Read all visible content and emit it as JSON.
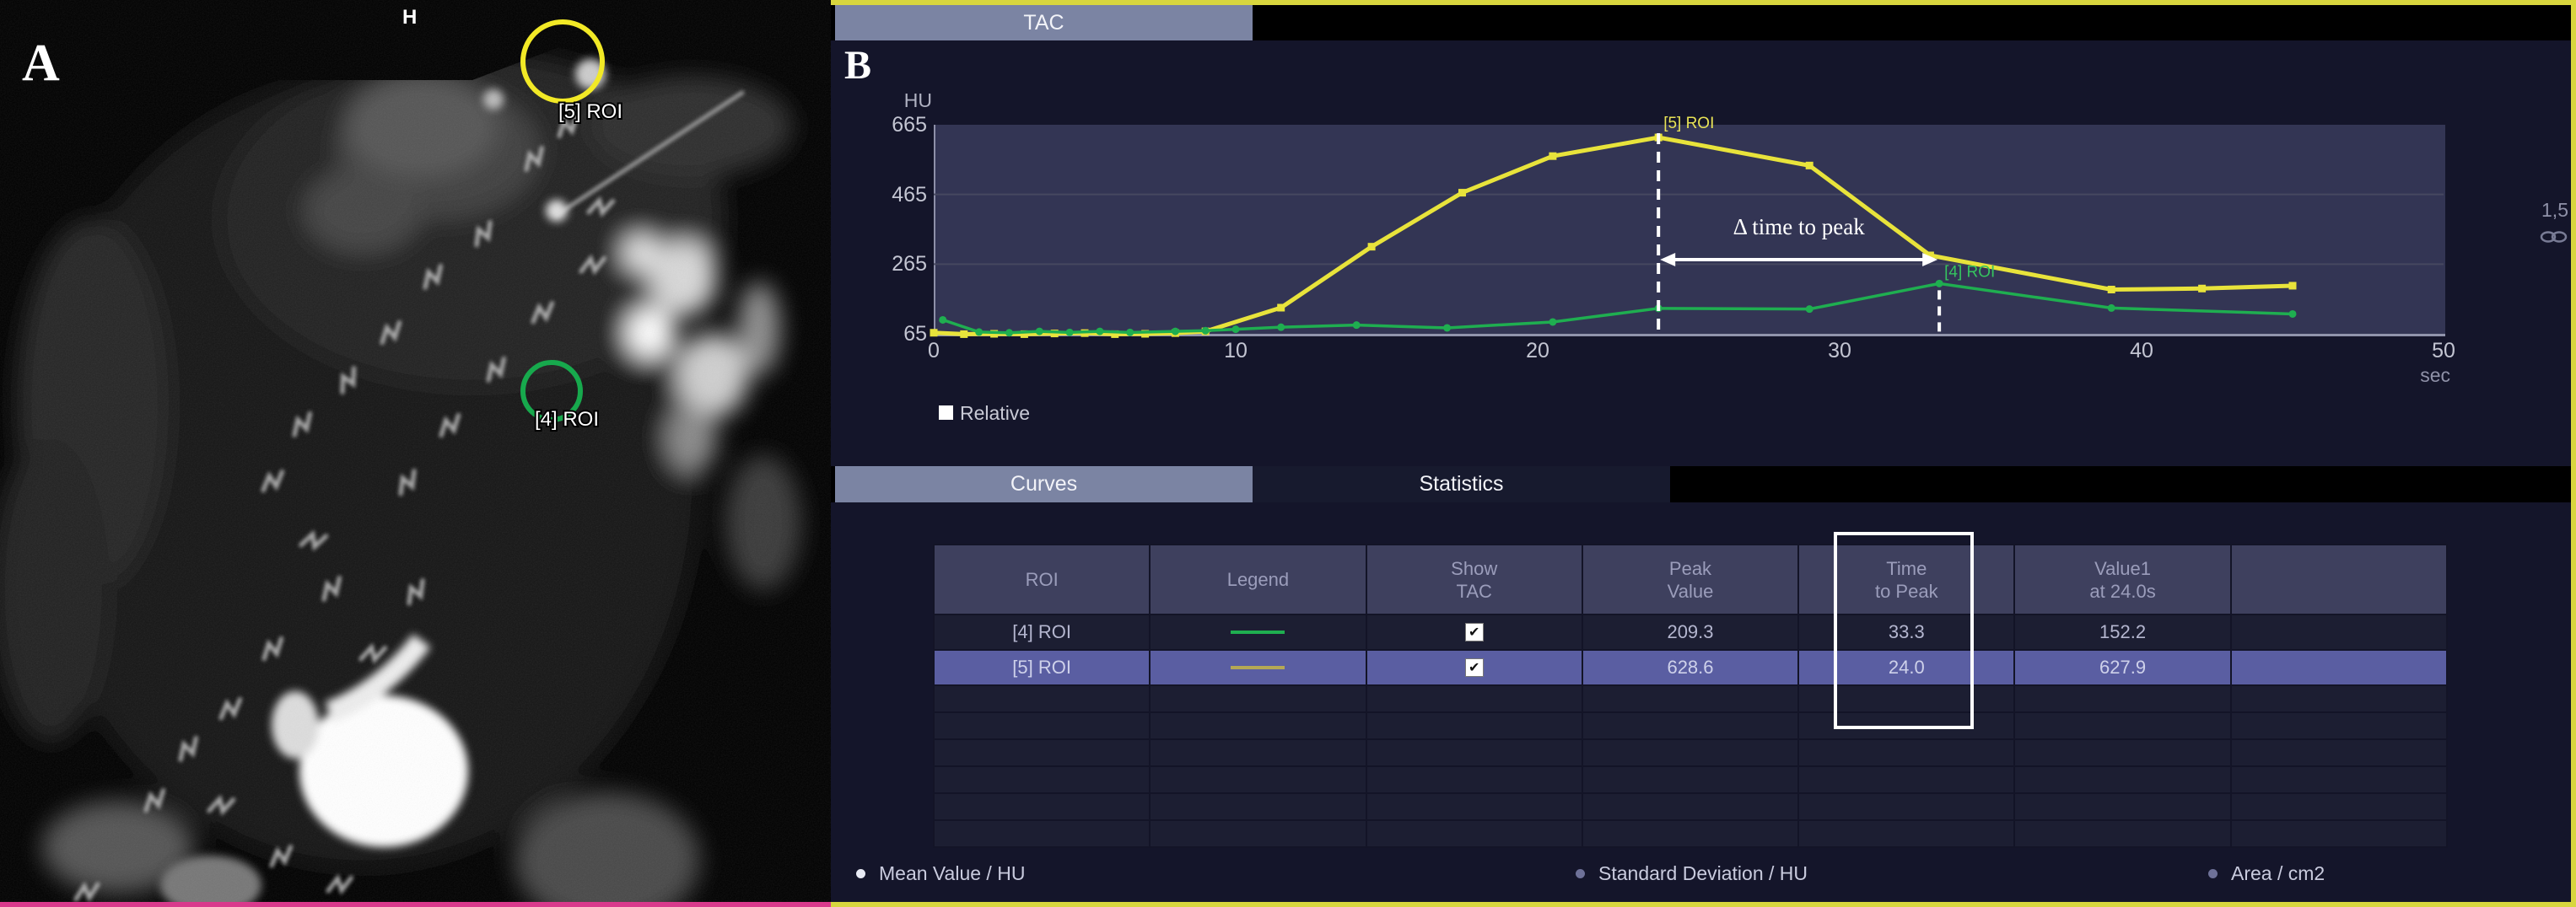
{
  "panel_a": {
    "figure_label": "A",
    "orientation_marker": "H",
    "rois": [
      {
        "label": "[5] ROI",
        "color": "#f2e926"
      },
      {
        "label": "[4] ROI",
        "color": "#17a94d"
      }
    ]
  },
  "panel_b": {
    "figure_label": "B",
    "top_tab": "TAC",
    "tabs": {
      "curves": "Curves",
      "statistics": "Statistics"
    },
    "relative_checkbox": {
      "label": "Relative",
      "checked": true
    },
    "zoom_link": {
      "value": "1,5",
      "icon": "link-icon"
    },
    "chart_data": {
      "type": "line",
      "title": "TAC",
      "xlabel": "sec",
      "ylabel": "HU",
      "xlim": [
        0,
        50
      ],
      "ylim": [
        65,
        665
      ],
      "xticks": [
        0,
        10,
        20,
        30,
        40,
        50
      ],
      "yticks": [
        665,
        465,
        265,
        65
      ],
      "grid": true,
      "legend_position": "none",
      "series": [
        {
          "name": "[5] ROI",
          "color": "#e8e33b",
          "marker": "square",
          "x": [
            0,
            1,
            2,
            3,
            4,
            5,
            6,
            7,
            8,
            9,
            11.5,
            14.5,
            17.5,
            20.5,
            24,
            29,
            33,
            39,
            42,
            45
          ],
          "y": [
            68,
            64,
            65,
            64,
            66,
            67,
            64,
            65,
            67,
            72,
            140,
            315,
            470,
            575,
            628.6,
            548,
            290,
            192,
            195,
            203
          ]
        },
        {
          "name": "[4] ROI",
          "color": "#1fae50",
          "marker": "circle",
          "x": [
            0.3,
            1.5,
            2.5,
            3.5,
            4.5,
            5.5,
            6.5,
            8,
            9,
            10,
            11.5,
            14,
            17,
            20.5,
            24,
            29,
            33.3,
            39,
            45
          ],
          "y": [
            105,
            70,
            68,
            72,
            69,
            72,
            69,
            72,
            74,
            78,
            84,
            90,
            82,
            99,
            138,
            136,
            209.3,
            139,
            122
          ]
        }
      ],
      "annotations": {
        "peak_line_1": {
          "x": 24.0,
          "label": "[5] ROI",
          "color": "#e8e356"
        },
        "peak_line_2": {
          "x": 33.3,
          "label": "[4] ROI",
          "color": "#35c45f"
        },
        "delta_arrow": {
          "label": "Δ time to peak",
          "x1": 24.0,
          "x2": 33.3
        }
      }
    },
    "table": {
      "headers": [
        "ROI",
        "Legend",
        "Show\nTAC",
        "Peak\nValue",
        "Time\nto Peak",
        "Value1\nat 24.0s",
        ""
      ],
      "rows": [
        {
          "roi": "[4] ROI",
          "legend_color": "#1fae50",
          "show_tac": true,
          "peak_value": "209.3",
          "time_to_peak": "33.3",
          "value1_at_24s": "152.2",
          "selected": false
        },
        {
          "roi": "[5] ROI",
          "legend_color": "#b5a855",
          "show_tac": true,
          "peak_value": "628.6",
          "time_to_peak": "24.0",
          "value1_at_24s": "627.9",
          "selected": true
        }
      ],
      "empty_row_count": 6,
      "highlighted_column": "Time to Peak"
    },
    "footer_legend": [
      {
        "label": "Mean Value / HU",
        "active": true
      },
      {
        "label": "Standard Deviation / HU",
        "active": false
      },
      {
        "label": "Area / cm2",
        "active": false
      }
    ]
  },
  "colors": {
    "panel_b_border": "#d8d63e",
    "panel_a_border": "#d93a8c",
    "tab_active_bg": "#7b84a3",
    "selected_row_bg": "#5a5ea2",
    "plot_bg": "#333554"
  }
}
